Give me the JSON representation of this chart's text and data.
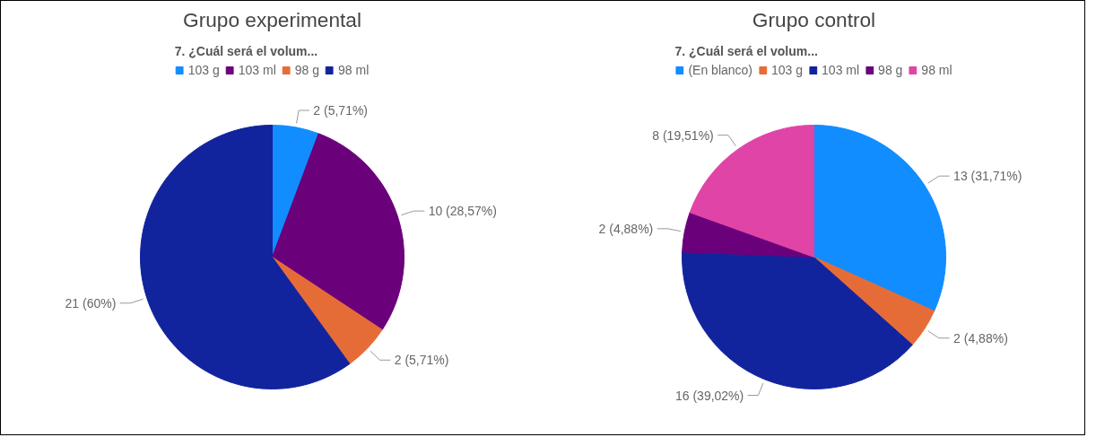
{
  "chart_data": [
    {
      "type": "pie",
      "title": "Grupo experimental",
      "legend_title": "7. ¿Cuál será el volum...",
      "categories": [
        "103 g",
        "103 ml",
        "98 g",
        "98 ml"
      ],
      "values": [
        2,
        10,
        2,
        21
      ],
      "colors": [
        "#118dff",
        "#6b007b",
        "#e66c37",
        "#12239e"
      ],
      "value_labels": [
        "2 (5,71%)",
        "10 (28,57%)",
        "2 (5,71%)",
        "21 (60%)"
      ],
      "legend": "top"
    },
    {
      "type": "pie",
      "title": "Grupo control",
      "legend_title": "7. ¿Cuál será el volum...",
      "categories": [
        "(En blanco)",
        "103 g",
        "103 ml",
        "98 g",
        "98 ml"
      ],
      "values": [
        13,
        2,
        16,
        2,
        8
      ],
      "colors": [
        "#118dff",
        "#e66c37",
        "#12239e",
        "#6b007b",
        "#e044a7"
      ],
      "value_labels": [
        "13 (31,71%)",
        "2 (4,88%)",
        "16 (39,02%)",
        "2 (4,88%)",
        "8 (19,51%)"
      ],
      "legend": "top"
    }
  ]
}
